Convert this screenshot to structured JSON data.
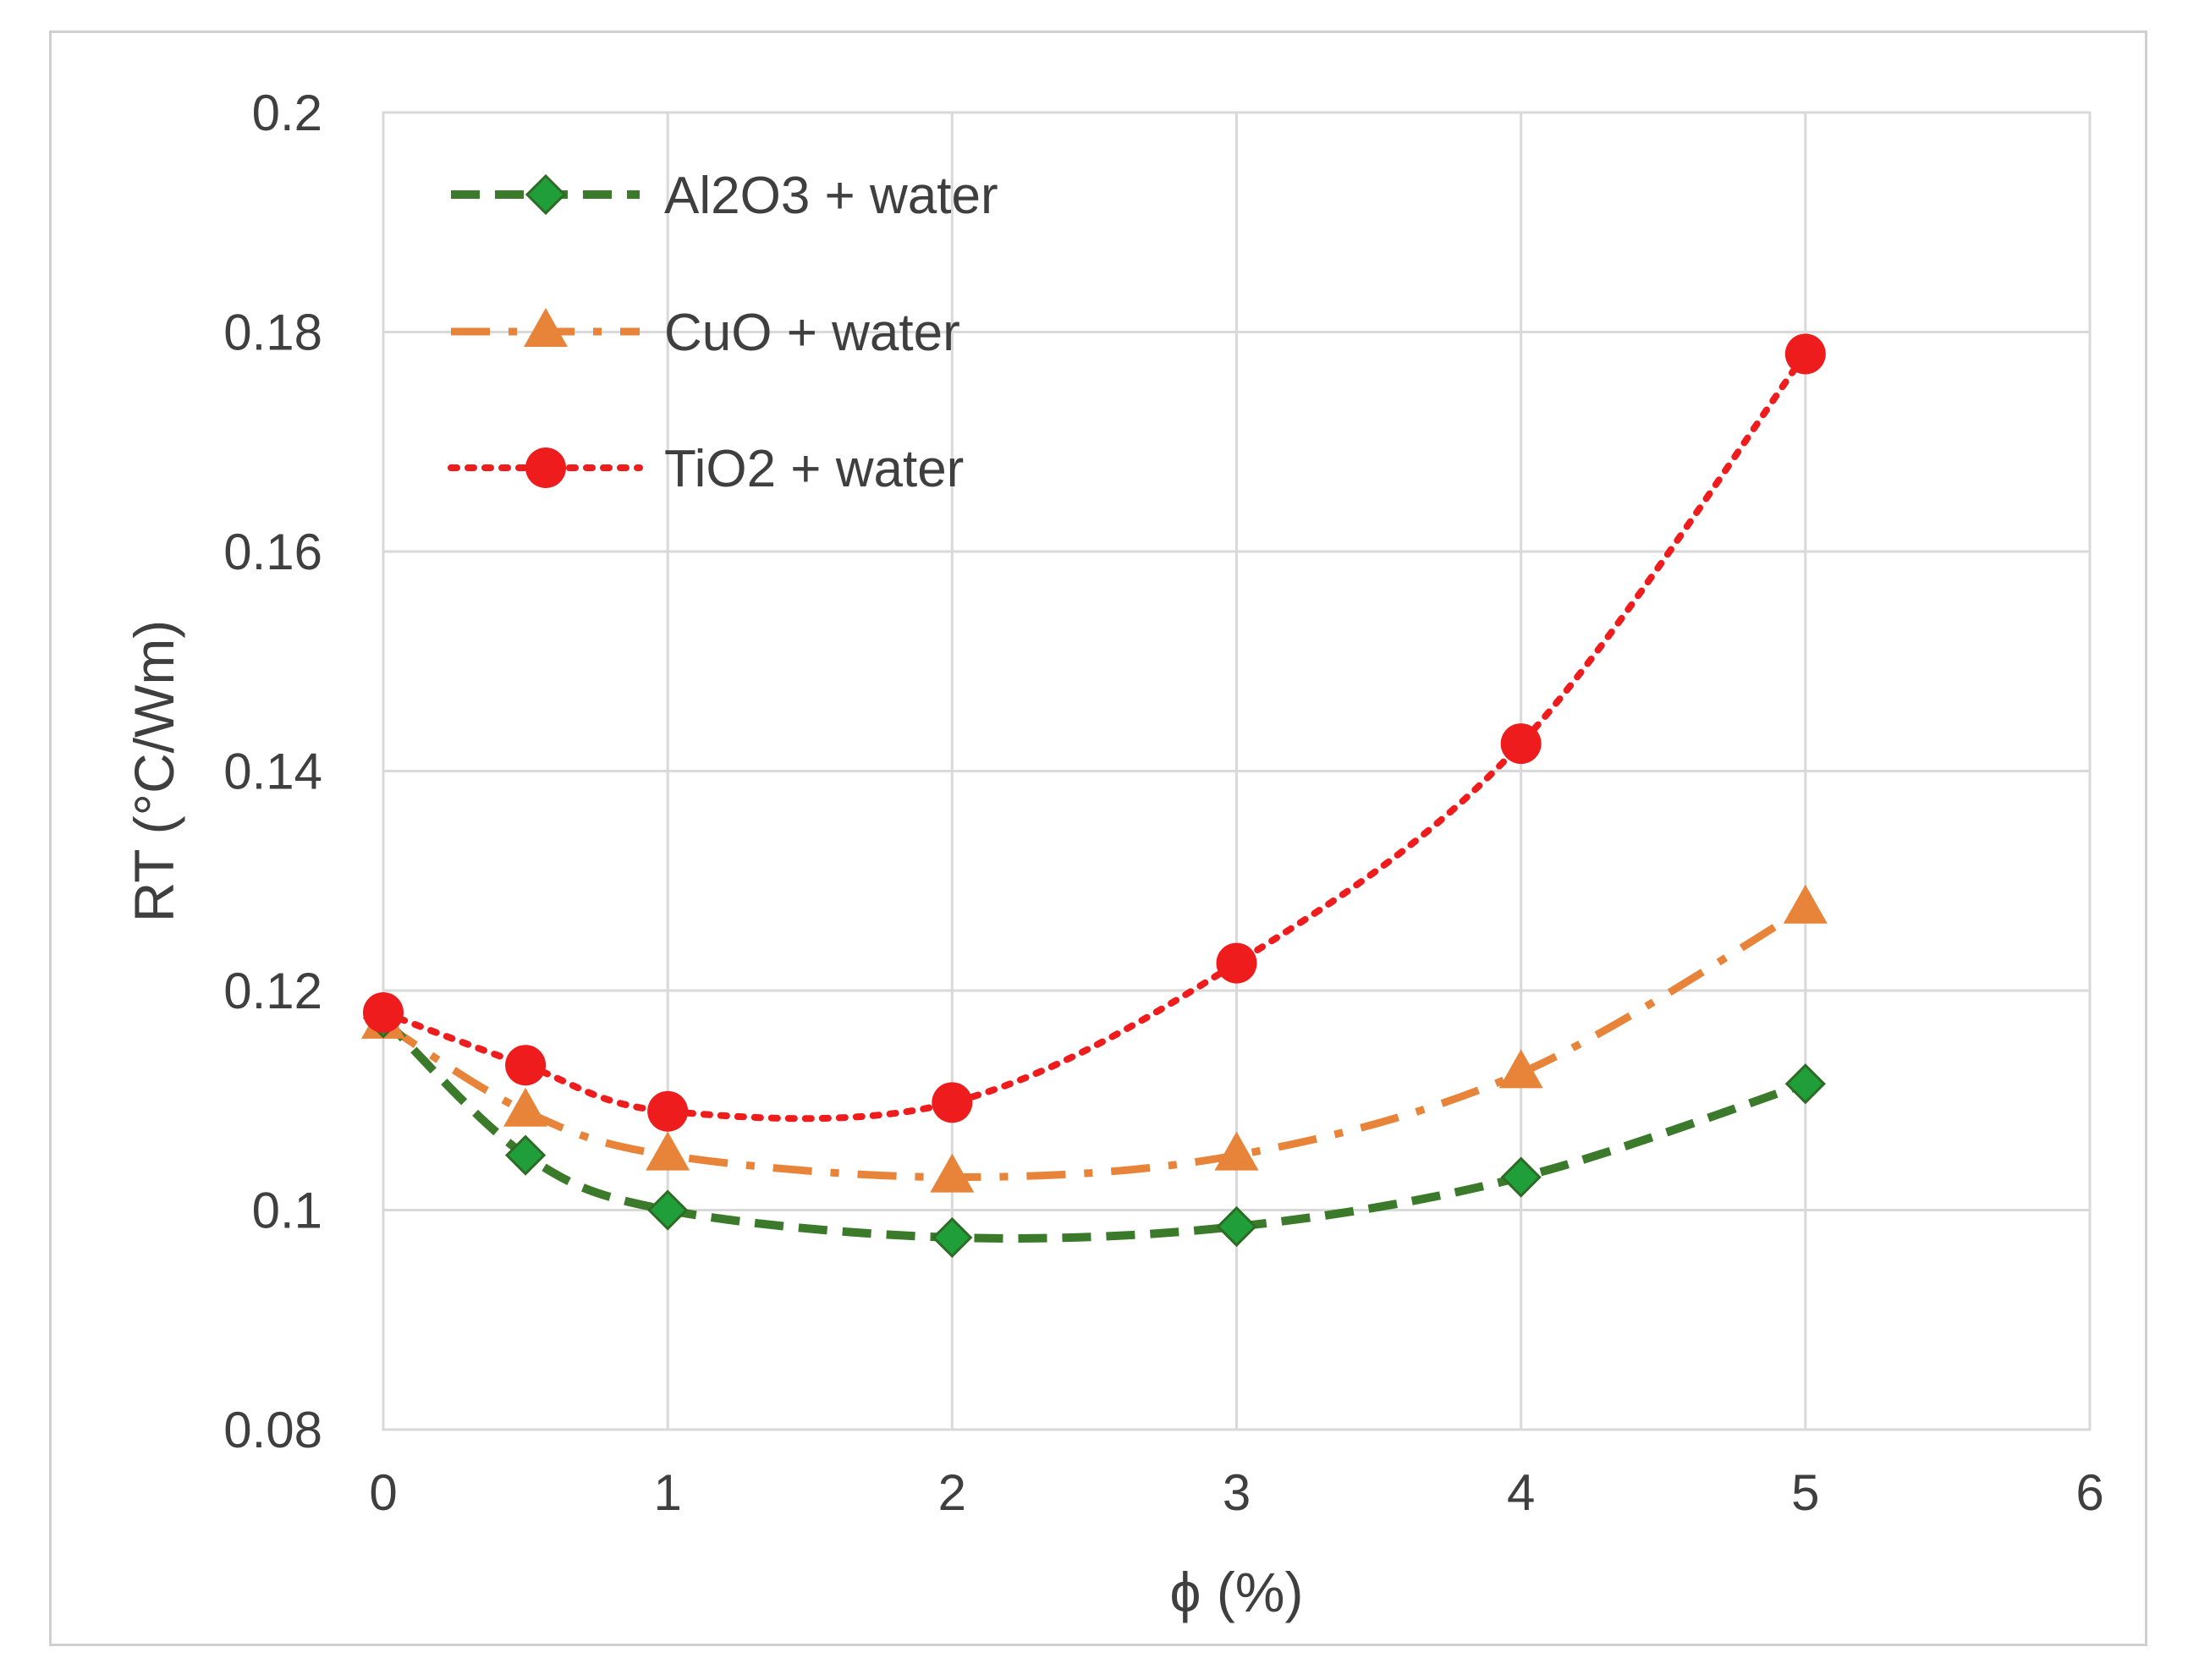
{
  "chart_data": {
    "type": "line",
    "title": "",
    "xlabel": "ϕ (%)",
    "ylabel": "RT (°C/Wm)",
    "xlim": [
      0,
      6
    ],
    "ylim": [
      0.08,
      0.2
    ],
    "x_ticks": [
      "0",
      "1",
      "2",
      "3",
      "4",
      "5",
      "6"
    ],
    "y_ticks": [
      "0.08",
      "0.1",
      "0.12",
      "0.14",
      "0.16",
      "0.18",
      "0.2"
    ],
    "grid": true,
    "legend_position": "top-left",
    "x": [
      0,
      0.5,
      1,
      2,
      3,
      4,
      5
    ],
    "series": [
      {
        "name": "Al2O3 + water",
        "values": [
          0.1175,
          0.105,
          0.1,
          0.0975,
          0.0985,
          0.103,
          0.1115
        ],
        "color": "#3a7a2a",
        "marker": "diamond",
        "marker_color": "#1f9e3a",
        "line_style": "dash"
      },
      {
        "name": "CuO + water",
        "values": [
          0.117,
          0.109,
          0.105,
          0.103,
          0.105,
          0.1125,
          0.1275
        ],
        "color": "#e8843a",
        "marker": "triangle",
        "marker_color": "#e8843a",
        "line_style": "dashdot"
      },
      {
        "name": "TiO2 + water",
        "values": [
          0.118,
          0.1132,
          0.109,
          0.1098,
          0.1225,
          0.1425,
          0.178
        ],
        "color": "#ee1c1c",
        "marker": "circle",
        "marker_color": "#ee1c1c",
        "line_style": "dot"
      }
    ]
  }
}
